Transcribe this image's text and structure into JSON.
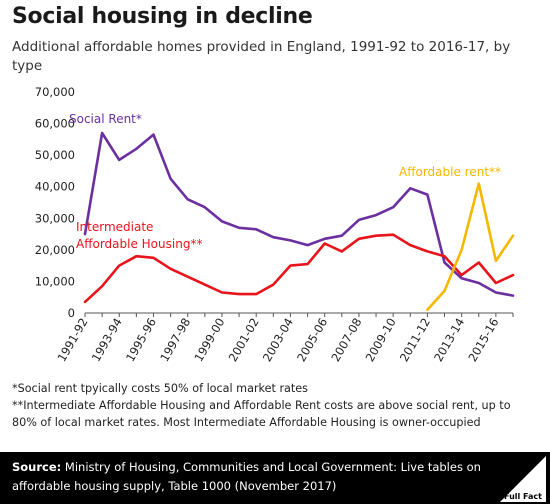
{
  "header": {
    "title": "Social housing in decline",
    "subtitle": "Additional affordable homes provided in England, 1991-92 to 2016-17, by type"
  },
  "chart_data": {
    "type": "line",
    "x_tick_labels": [
      "1991-92",
      "1993-94",
      "1995-96",
      "1997-98",
      "1999-00",
      "2001-02",
      "2003-04",
      "2005-06",
      "2007-08",
      "2009-10",
      "2011-12",
      "2013-14",
      "2015-16"
    ],
    "y_ticks": [
      "0",
      "10,000",
      "20,000",
      "30,000",
      "40,000",
      "50,000",
      "60,000",
      "70,000"
    ],
    "ylim": [
      0,
      70000
    ],
    "grid": false,
    "series": [
      {
        "name": "Social Rent*",
        "color": "#6b2fa0",
        "x": [
          "1991-92",
          "1992-93",
          "1993-94",
          "1994-95",
          "1995-96",
          "1996-97",
          "1997-98",
          "1998-99",
          "1999-00",
          "2000-01",
          "2001-02",
          "2002-03",
          "2003-04",
          "2004-05",
          "2005-06",
          "2006-07",
          "2007-08",
          "2008-09",
          "2009-10",
          "2010-11",
          "2011-12",
          "2012-13",
          "2013-14",
          "2014-15",
          "2015-16",
          "2016-17"
        ],
        "values": [
          25000,
          57000,
          48500,
          52000,
          56500,
          42500,
          36000,
          33500,
          29000,
          27000,
          26500,
          24000,
          23000,
          21500,
          23500,
          24500,
          29500,
          31000,
          33500,
          39500,
          37500,
          16000,
          11000,
          9500,
          6500,
          5500
        ]
      },
      {
        "name": "Intermediate Affordable Housing**",
        "color": "#e8141b",
        "x": [
          "1991-92",
          "1992-93",
          "1993-94",
          "1994-95",
          "1995-96",
          "1996-97",
          "1997-98",
          "1998-99",
          "1999-00",
          "2000-01",
          "2001-02",
          "2002-03",
          "2003-04",
          "2004-05",
          "2005-06",
          "2006-07",
          "2007-08",
          "2008-09",
          "2009-10",
          "2010-11",
          "2011-12",
          "2012-13",
          "2013-14",
          "2014-15",
          "2015-16",
          "2016-17"
        ],
        "values": [
          3500,
          8500,
          15000,
          18000,
          17500,
          14000,
          11500,
          9000,
          6500,
          6000,
          6000,
          9000,
          15000,
          15500,
          22000,
          19500,
          23500,
          24500,
          24800,
          21500,
          19500,
          18000,
          12000,
          16000,
          9500,
          12000
        ]
      },
      {
        "name": "Affordable rent**",
        "color": "#f5b800",
        "x": [
          "2011-12",
          "2012-13",
          "2013-14",
          "2014-15",
          "2015-16",
          "2016-17"
        ],
        "values": [
          1000,
          7000,
          20000,
          41000,
          16500,
          24500
        ]
      }
    ]
  },
  "notes": [
    "*Social rent tpyically costs 50% of local market rates",
    "**Intermediate Affordable Housing and Affordable Rent costs are above social rent, up to 80% of local market rates. Most Intermediate Affordable Housing is owner-occupied"
  ],
  "footer": {
    "source_label": "Source:",
    "source_text": " Ministry of Housing, Communities and Local Government: Live tables on affordable housing supply, Table 1000 (November 2017)",
    "logo_text": "Full Fact"
  }
}
